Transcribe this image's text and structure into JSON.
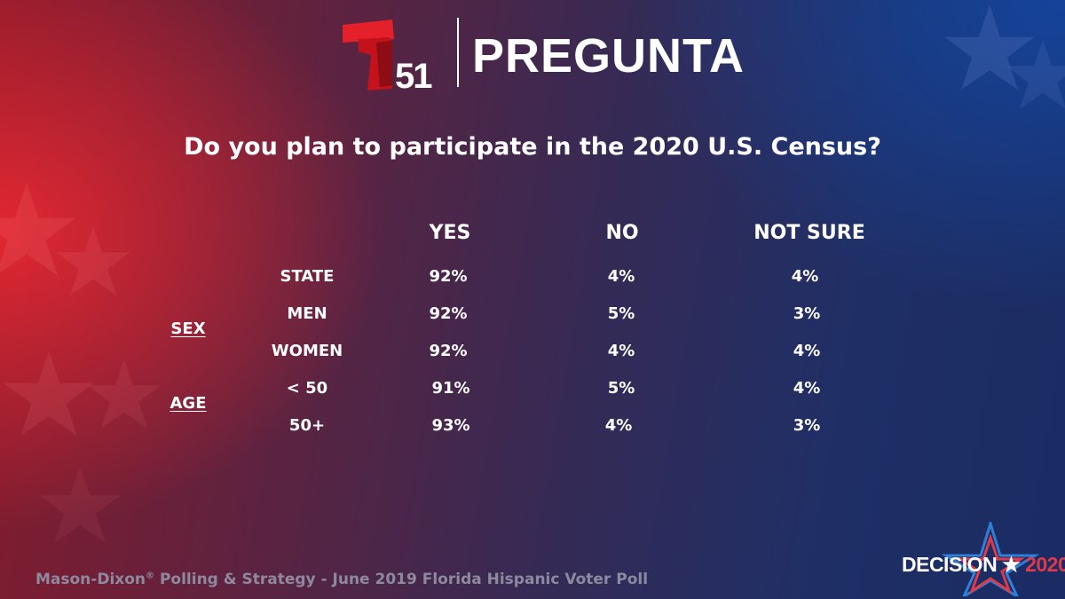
{
  "header": {
    "logo_number": "51",
    "brand_title": "PREGUNTA"
  },
  "question": "Do you plan to participate in the 2020 U.S. Census?",
  "table": {
    "columns": [
      "YES",
      "NO",
      "NOT SURE"
    ],
    "groups": {
      "sex": "SEX",
      "age": "AGE"
    },
    "rows": [
      {
        "label": "STATE",
        "values": [
          "92%",
          "4%",
          "4%"
        ]
      },
      {
        "label": "MEN",
        "values": [
          "92%",
          "5%",
          "3%"
        ]
      },
      {
        "label": "WOMEN",
        "values": [
          "92%",
          "4%",
          "4%"
        ]
      },
      {
        "label": "< 50",
        "values": [
          "91%",
          "5%",
          "4%"
        ]
      },
      {
        "label": "50+",
        "values": [
          "93%",
          "4%",
          "3%"
        ]
      }
    ]
  },
  "footer": {
    "source_prefix": "Mason-Dixon",
    "source_mark": "®",
    "source_suffix": " Polling & Strategy - June 2019 Florida Hispanic Voter Poll"
  },
  "badge": {
    "word": "DECISION",
    "star": "★",
    "year": "2020"
  },
  "colors": {
    "telemundo_red": "#e4202b",
    "accent_red": "#e03a4a",
    "accent_blue": "#2f7fd6"
  }
}
